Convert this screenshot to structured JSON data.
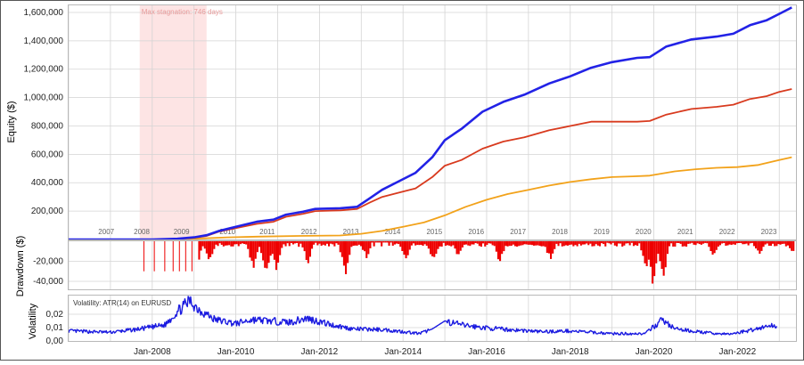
{
  "colors": {
    "equity_blue": "#2222e6",
    "equity_red": "#d83a1e",
    "equity_orange": "#f2a21a",
    "drawdown": "#ee0000",
    "volatility": "#1a1ae0",
    "stagnation": "#fde4e4",
    "stagnation_text": "#e89a9a",
    "grid": "#d4d4d4",
    "year_label": "#666666"
  },
  "chart_data": [
    {
      "type": "line",
      "ylabel": "Equity ($)",
      "ylim": [
        0,
        1650000
      ],
      "yticks": [
        200000,
        400000,
        600000,
        800000,
        1000000,
        1200000,
        1400000,
        1600000
      ],
      "ytick_labels": [
        "200,000",
        "400,000",
        "600,000",
        "800,000",
        "1,000,000",
        "1,200,000",
        "1,400,000",
        "1,600,000"
      ],
      "xlim": [
        2006.0,
        2023.4
      ],
      "year_labels": [
        "2007",
        "2008",
        "2009",
        "2010",
        "2011",
        "2012",
        "2013",
        "2014",
        "2015",
        "2016",
        "2017",
        "2018",
        "2019",
        "2020",
        "2021",
        "2022",
        "2023"
      ],
      "year_label_x": [
        2006.9,
        2007.75,
        2008.7,
        2009.8,
        2010.75,
        2011.75,
        2012.75,
        2013.75,
        2014.75,
        2015.75,
        2016.75,
        2017.75,
        2018.75,
        2019.75,
        2020.75,
        2021.75,
        2022.75
      ],
      "stagnation": {
        "label": "Max stagnation: 746 days",
        "start": 2007.7,
        "end": 2009.3
      },
      "grid": true,
      "series": [
        {
          "color_key": "equity_blue",
          "x": [
            2006.0,
            2007.0,
            2008.0,
            2008.6,
            2009.0,
            2009.3,
            2009.6,
            2010.0,
            2010.5,
            2010.9,
            2011.2,
            2011.6,
            2011.9,
            2012.5,
            2012.9,
            2013.2,
            2013.5,
            2013.9,
            2014.3,
            2014.7,
            2015.0,
            2015.4,
            2015.9,
            2016.4,
            2016.9,
            2017.5,
            2018.0,
            2018.5,
            2019.0,
            2019.6,
            2019.9,
            2020.3,
            2020.9,
            2021.5,
            2021.9,
            2022.3,
            2022.7,
            2023.0,
            2023.3
          ],
          "y": [
            0,
            0,
            0,
            5000,
            15000,
            30000,
            60000,
            90000,
            125000,
            140000,
            175000,
            195000,
            215000,
            220000,
            230000,
            290000,
            350000,
            410000,
            470000,
            580000,
            700000,
            780000,
            900000,
            970000,
            1020000,
            1100000,
            1150000,
            1210000,
            1250000,
            1280000,
            1285000,
            1360000,
            1410000,
            1430000,
            1450000,
            1510000,
            1545000,
            1590000,
            1635000
          ]
        },
        {
          "color_key": "equity_red",
          "x": [
            2006.0,
            2007.0,
            2008.0,
            2008.6,
            2009.0,
            2009.3,
            2009.6,
            2010.0,
            2010.5,
            2010.9,
            2011.2,
            2011.6,
            2011.9,
            2012.5,
            2012.9,
            2013.2,
            2013.5,
            2013.9,
            2014.3,
            2014.7,
            2015.0,
            2015.4,
            2015.9,
            2016.4,
            2016.9,
            2017.5,
            2018.0,
            2018.5,
            2019.0,
            2019.6,
            2019.9,
            2020.3,
            2020.9,
            2021.5,
            2021.9,
            2022.3,
            2022.7,
            2023.0,
            2023.3
          ],
          "y": [
            0,
            0,
            0,
            4000,
            12000,
            25000,
            55000,
            80000,
            110000,
            125000,
            160000,
            180000,
            200000,
            205000,
            215000,
            260000,
            300000,
            330000,
            360000,
            440000,
            520000,
            560000,
            640000,
            690000,
            720000,
            770000,
            800000,
            830000,
            830000,
            830000,
            835000,
            880000,
            920000,
            935000,
            950000,
            990000,
            1010000,
            1040000,
            1060000
          ]
        },
        {
          "color_key": "equity_orange",
          "x": [
            2006.0,
            2008.0,
            2009.0,
            2009.8,
            2010.5,
            2011.5,
            2012.5,
            2013.0,
            2013.5,
            2014.0,
            2014.5,
            2015.0,
            2015.5,
            2016.0,
            2016.5,
            2017.0,
            2017.5,
            2018.0,
            2018.5,
            2019.0,
            2019.5,
            2019.9,
            2020.5,
            2021.0,
            2021.5,
            2022.0,
            2022.5,
            2023.0,
            2023.3
          ],
          "y": [
            0,
            0,
            5000,
            15000,
            20000,
            25000,
            28000,
            40000,
            60000,
            90000,
            120000,
            170000,
            230000,
            280000,
            320000,
            350000,
            380000,
            405000,
            425000,
            440000,
            445000,
            450000,
            480000,
            495000,
            505000,
            510000,
            525000,
            560000,
            580000
          ]
        }
      ]
    },
    {
      "type": "area",
      "ylabel": "Drawdown ($)",
      "ylim": [
        -48000,
        0
      ],
      "yticks": [
        -20000,
        -40000
      ],
      "ytick_labels": [
        "-20,000",
        "-40,000"
      ],
      "xlim": [
        2006.0,
        2023.4
      ],
      "grid": true
    },
    {
      "type": "line",
      "ylabel": "Volatility",
      "legend": "Volatility: ATR(14) on EURUSD",
      "legend_placement": "top-left",
      "ylim": [
        0,
        0.034
      ],
      "yticks": [
        0,
        0.01,
        0.02
      ],
      "ytick_labels": [
        "0,00",
        "0,01",
        "0,02"
      ],
      "xlim": [
        2006.0,
        2023.4
      ],
      "xticks": [
        2008.0,
        2010.0,
        2012.0,
        2014.0,
        2016.0,
        2018.0,
        2020.0,
        2022.0
      ],
      "xtick_labels": [
        "Jan-2008",
        "Jan-2010",
        "Jan-2012",
        "Jan-2014",
        "Jan-2016",
        "Jan-2018",
        "Jan-2020",
        "Jan-2022"
      ],
      "grid": true
    }
  ]
}
